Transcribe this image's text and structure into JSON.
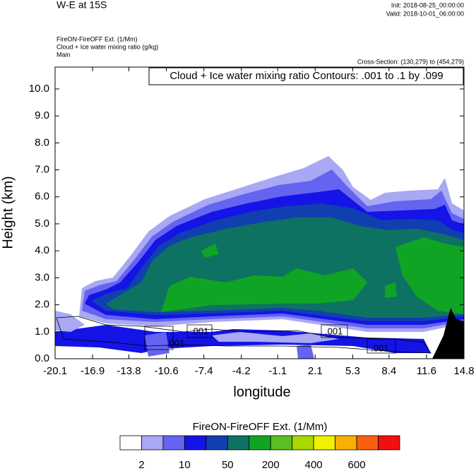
{
  "chart_data": {
    "type": "contour",
    "title": "W-E at 15S",
    "init": "Init: 2018-08-25_00:00:00",
    "valid": "Valid: 2018-10-01_06:00:00",
    "subtitles": [
      "FireON-FireOFF Ext.   (1/Mm)",
      "Cloud + Ice water mixing ratio   (g/kg)",
      "Main"
    ],
    "cross_section": "Cross-Section: (130,279) to (454,279)",
    "contour_info": "Cloud + Ice water mixing ratio Contours: .001 to .1 by .099",
    "contour_labels": [
      ".001",
      ".001",
      ".001",
      ".001"
    ],
    "x_label": "longitude",
    "y_label": "Height (km)",
    "xlim": [
      -20.1,
      14.8
    ],
    "xticks": [
      -20.1,
      -16.9,
      -13.8,
      -10.6,
      -7.4,
      -4.2,
      -1.1,
      2.1,
      5.3,
      8.4,
      11.6,
      14.8
    ],
    "ylim": [
      0,
      10.81
    ],
    "yticks": [
      {
        "value": 0,
        "label": "0.0"
      },
      {
        "value": 1,
        "label": "1.0"
      },
      {
        "value": 2,
        "label": "2.0"
      },
      {
        "value": 3,
        "label": "3.0"
      },
      {
        "value": 4,
        "label": "4.0"
      },
      {
        "value": 5,
        "label": "5.0"
      },
      {
        "value": 6,
        "label": "6.0"
      },
      {
        "value": 7,
        "label": "7.0"
      },
      {
        "value": 8,
        "label": "8.0"
      },
      {
        "value": 9,
        "label": "9.0"
      },
      {
        "value": 10,
        "label": "10.0"
      }
    ],
    "colorbar": {
      "title": "FireON-FireOFF Ext.  (1/Mm)",
      "colors": [
        "#ffffff",
        "#a8a8f4",
        "#6464f0",
        "#1414e6",
        "#1040b0",
        "#0e7262",
        "#10a424",
        "#58c020",
        "#a8d800",
        "#f0f000",
        "#f8b000",
        "#f86010",
        "#f01010"
      ],
      "labels": [
        2,
        10,
        50,
        200,
        400,
        600
      ]
    }
  }
}
